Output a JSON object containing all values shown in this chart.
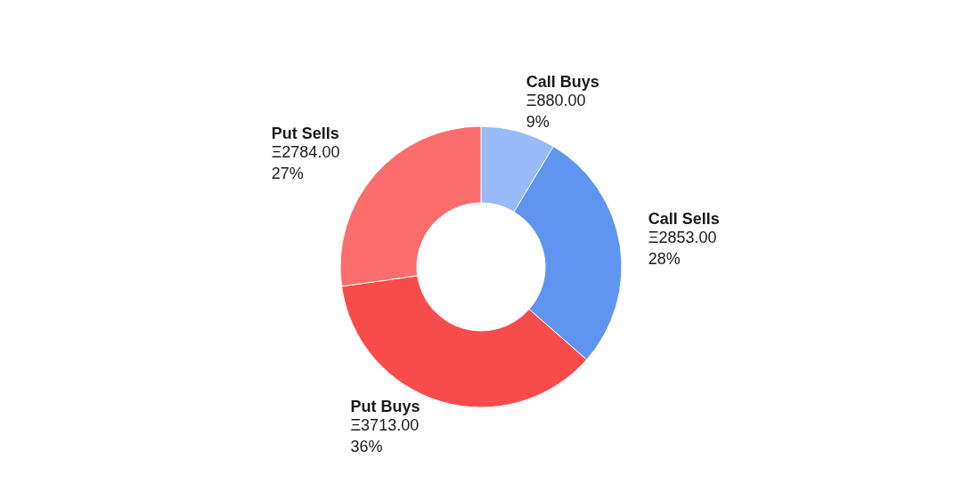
{
  "chart_data": {
    "type": "donut",
    "categories": [
      "Call Buys",
      "Call Sells",
      "Put Buys",
      "Put Sells"
    ],
    "values": [
      880,
      2853,
      3713,
      2784
    ],
    "colors": [
      "#99bbfa",
      "#5f95f1",
      "#f84c4c",
      "#fd6d6d"
    ],
    "value_labels": [
      "Ξ880.00\n9%",
      "Ξ2853.00\n28%",
      "Ξ3713.00\n36%",
      "Ξ2784.00\n27%"
    ]
  }
}
